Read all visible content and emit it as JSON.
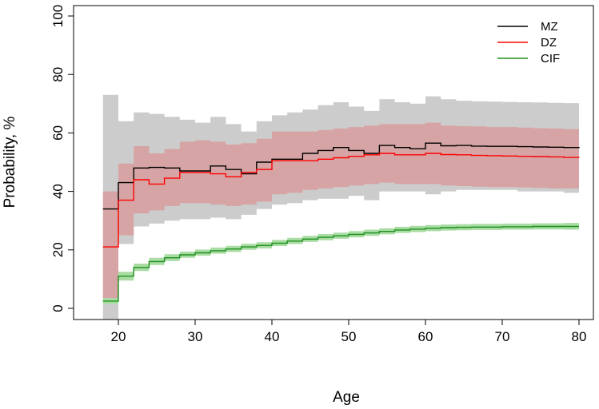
{
  "chart_data": {
    "type": "line",
    "title": "",
    "xlabel": "Age",
    "ylabel": "Probability, %",
    "xlim": [
      18,
      80
    ],
    "ylim": [
      0,
      100
    ],
    "xticks": [
      20,
      30,
      40,
      50,
      60,
      70,
      80
    ],
    "yticks": [
      0,
      20,
      40,
      60,
      80,
      100
    ],
    "grid": false,
    "legend_position": "top-right",
    "series": [
      {
        "name": "MZ",
        "color": "#000000",
        "band_color": "#cccccc",
        "step": true,
        "x": [
          18,
          20,
          22,
          24,
          26,
          28,
          30,
          32,
          34,
          36,
          38,
          40,
          42,
          44,
          46,
          48,
          50,
          52,
          54,
          56,
          58,
          60,
          62,
          64,
          66,
          68,
          70,
          72,
          74,
          76,
          78,
          80
        ],
        "y": [
          34,
          43,
          48,
          48.2,
          48,
          47,
          47,
          48.7,
          47.5,
          46,
          50,
          51,
          51,
          53,
          54,
          55,
          54,
          53,
          55.7,
          55,
          54.6,
          56.5,
          55.6,
          55.7,
          55.5,
          55.4,
          55.4,
          55.3,
          55.2,
          55.1,
          55,
          54.8
        ],
        "lower": [
          -4,
          22,
          28,
          29,
          30,
          30.5,
          30.5,
          31,
          30.5,
          32,
          34,
          35.5,
          36,
          37,
          37.5,
          37.5,
          38.5,
          37,
          40,
          40,
          40,
          39,
          40,
          40.5,
          40.5,
          40.5,
          40.5,
          40,
          40,
          40,
          39.5,
          39.5
        ],
        "upper": [
          73,
          64,
          67,
          66.5,
          65.5,
          64.5,
          63.5,
          65.5,
          63,
          60.5,
          64,
          66,
          67,
          68,
          69.5,
          70.5,
          69,
          67.5,
          71.5,
          70.5,
          70,
          72.5,
          71.5,
          71,
          70.8,
          70.7,
          70.6,
          70.5,
          70.4,
          70.3,
          70.2,
          70
        ]
      },
      {
        "name": "DZ",
        "color": "#ff0000",
        "band_color": "#d6a4a4",
        "step": true,
        "x": [
          18,
          20,
          22,
          24,
          26,
          28,
          30,
          32,
          34,
          36,
          38,
          40,
          42,
          44,
          46,
          48,
          50,
          52,
          54,
          56,
          58,
          60,
          62,
          64,
          66,
          68,
          70,
          72,
          74,
          76,
          78,
          80
        ],
        "y": [
          21,
          37,
          44,
          42.5,
          44.5,
          46.5,
          46.5,
          46,
          45,
          46.5,
          47.5,
          50.5,
          50.5,
          50.5,
          51,
          51.5,
          52,
          52.5,
          53,
          52.5,
          52.5,
          53,
          52.6,
          52.5,
          52.3,
          52.2,
          52.1,
          52,
          51.9,
          51.8,
          51.6,
          51.5
        ],
        "lower": [
          3.5,
          25,
          32.5,
          33.5,
          35,
          36,
          36,
          35.5,
          35,
          35.5,
          36.5,
          39,
          39.5,
          40.5,
          41,
          41.5,
          42,
          42.5,
          43,
          42.5,
          42.5,
          42.5,
          42,
          41.8,
          41.6,
          41.5,
          41.5,
          41.3,
          41.2,
          41,
          41,
          40.8
        ],
        "upper": [
          40,
          49.5,
          55.5,
          53,
          54.5,
          57,
          57.5,
          57,
          56,
          56.5,
          58,
          60.5,
          60.5,
          60.5,
          61,
          61.5,
          62,
          62.5,
          63,
          63,
          63,
          63.5,
          62.5,
          62.3,
          62.2,
          62,
          62,
          61.8,
          61.6,
          61.5,
          61.3,
          61
        ]
      },
      {
        "name": "CIF",
        "color": "#1f8f1f",
        "band_color": "#a9dca3",
        "step": true,
        "x": [
          18,
          20,
          22,
          24,
          26,
          28,
          30,
          32,
          34,
          36,
          38,
          40,
          42,
          44,
          46,
          48,
          50,
          52,
          54,
          56,
          58,
          60,
          62,
          64,
          66,
          68,
          70,
          72,
          74,
          76,
          78,
          80
        ],
        "y": [
          2.5,
          11,
          14,
          16,
          17.3,
          18.3,
          19,
          19.7,
          20.3,
          21,
          21.5,
          22.3,
          23,
          23.7,
          24.3,
          24.8,
          25.3,
          25.8,
          26.3,
          26.8,
          27.1,
          27.4,
          27.6,
          27.7,
          27.8,
          27.8,
          27.9,
          27.9,
          28,
          28,
          28,
          28
        ],
        "lower": [
          1.5,
          9.5,
          12.8,
          14.8,
          16.2,
          17.3,
          18,
          18.7,
          19.3,
          20,
          20.5,
          21.3,
          22,
          22.7,
          23.3,
          23.8,
          24.3,
          24.8,
          25.3,
          25.8,
          26.1,
          26.4,
          26.6,
          26.7,
          26.8,
          26.8,
          26.9,
          26.9,
          27,
          27,
          26.9,
          26.8
        ],
        "upper": [
          3.5,
          12.5,
          15.3,
          17.3,
          18.5,
          19.4,
          20.1,
          20.8,
          21.4,
          22.1,
          22.6,
          23.4,
          24.1,
          24.8,
          25.4,
          25.9,
          26.4,
          26.9,
          27.4,
          27.9,
          28.2,
          28.5,
          28.7,
          28.8,
          28.9,
          28.9,
          29,
          29,
          29.1,
          29.1,
          29.2,
          29.3
        ]
      }
    ]
  }
}
